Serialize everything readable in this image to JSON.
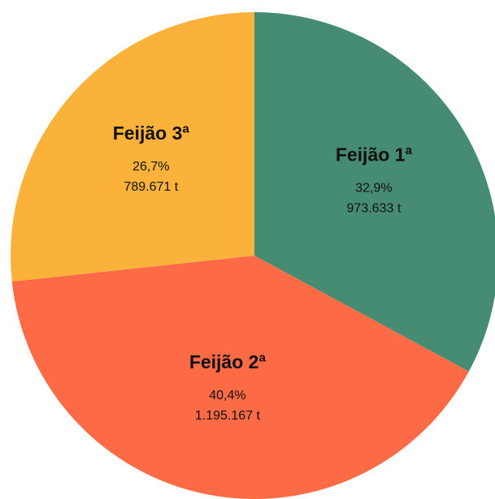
{
  "chart_data": {
    "type": "pie",
    "categories": [
      "Feijão 1ª",
      "Feijão 2ª",
      "Feijão 3ª"
    ],
    "values": [
      32.9,
      40.4,
      26.7
    ],
    "value_labels": [
      "32,9%",
      "40,4%",
      "26,7%"
    ],
    "amounts": [
      973633,
      1195167,
      789671
    ],
    "amount_labels": [
      "973.633 t",
      "1.195.167 t",
      "789.671 t"
    ],
    "colors": [
      "#468c73",
      "#fd6a46",
      "#fbb23b"
    ]
  }
}
